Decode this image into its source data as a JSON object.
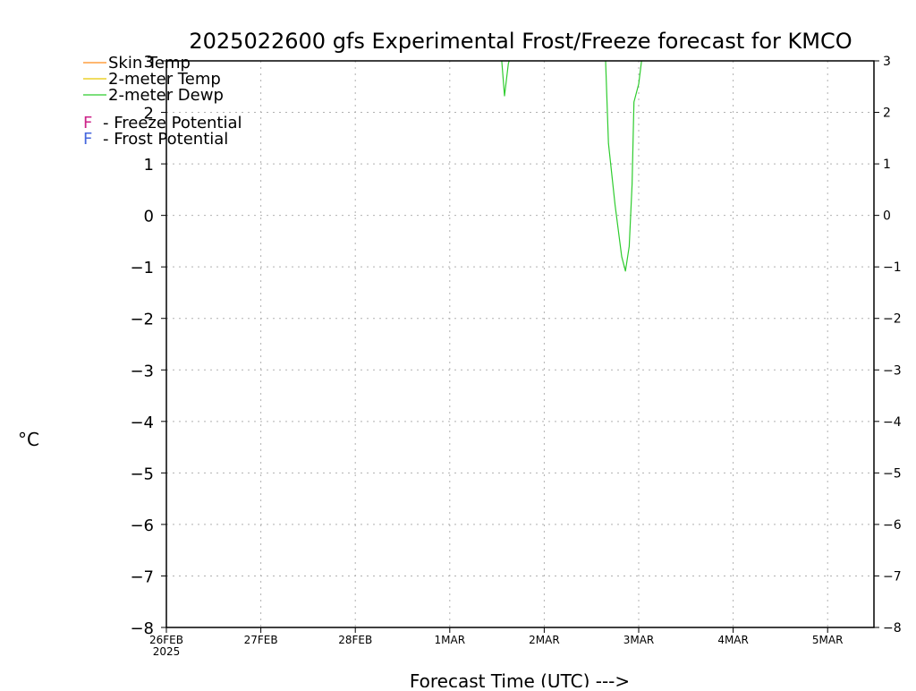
{
  "chart_data": {
    "type": "line",
    "title": "2025022600 gfs Experimental Frost/Freeze forecast for KMCO",
    "xlabel": "Forecast Time (UTC) --->",
    "ylabel": "°C",
    "ylim": [
      -8,
      3
    ],
    "yticks": [
      "-8",
      "-7",
      "-6",
      "-5",
      "-4",
      "-3",
      "-2",
      "-1",
      "0",
      "1",
      "2",
      "3"
    ],
    "xlim_days": [
      0,
      7.5
    ],
    "xticks": [
      {
        "day": 0,
        "label": "26FEB",
        "sublabel": "2025"
      },
      {
        "day": 1,
        "label": "27FEB",
        "sublabel": ""
      },
      {
        "day": 2,
        "label": "28FEB",
        "sublabel": ""
      },
      {
        "day": 3,
        "label": "1MAR",
        "sublabel": ""
      },
      {
        "day": 4,
        "label": "2MAR",
        "sublabel": ""
      },
      {
        "day": 5,
        "label": "3MAR",
        "sublabel": ""
      },
      {
        "day": 6,
        "label": "4MAR",
        "sublabel": ""
      },
      {
        "day": 7,
        "label": "5MAR",
        "sublabel": ""
      }
    ],
    "grid": true,
    "legend": {
      "position": "top-left",
      "series_entries": [
        {
          "name": "Skin Temp",
          "color": "#ff8c1a"
        },
        {
          "name": "2-meter Temp",
          "color": "#e6c800"
        },
        {
          "name": "2-meter Dewp",
          "color": "#2ecc2e"
        }
      ],
      "potential_entries": [
        {
          "marker": "F",
          "text": "- Freeze Potential",
          "color": "#cc2288"
        },
        {
          "marker": "F",
          "text": "- Frost Potential",
          "color": "#4466dd"
        }
      ]
    },
    "series": [
      {
        "name": "2-meter Dewp",
        "color": "#2ecc2e",
        "segments": [
          [
            [
              3.55,
              3.0
            ],
            [
              3.58,
              2.32
            ],
            [
              3.62,
              2.95
            ],
            [
              3.63,
              3.0
            ]
          ],
          [
            [
              4.65,
              3.0
            ],
            [
              4.68,
              1.4
            ],
            [
              4.75,
              0.2
            ],
            [
              4.82,
              -0.8
            ],
            [
              4.86,
              -1.08
            ],
            [
              4.9,
              -0.6
            ],
            [
              4.93,
              0.6
            ],
            [
              4.95,
              2.2
            ],
            [
              5.0,
              2.55
            ],
            [
              5.03,
              3.0
            ]
          ]
        ]
      }
    ]
  }
}
